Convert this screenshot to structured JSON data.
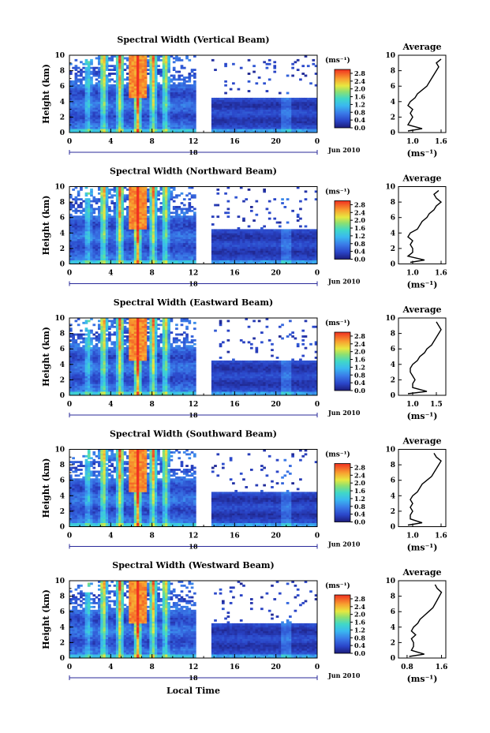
{
  "figure": {
    "xlabel": "Local Time",
    "date_label": "Jun 2010",
    "day_label": "18",
    "panel_ylabel": "Height (km)",
    "unit_label": "(ms⁻¹)",
    "avg_title": "Average",
    "avg_xlabel": "(ms⁻¹)"
  },
  "chart_data": [
    {
      "type": "heatmap",
      "title": "Spectral Width (Vertical Beam)",
      "xlabel": "",
      "ylabel": "Height (km)",
      "x_ticks": [
        "0",
        "4",
        "8",
        "12",
        "16",
        "20",
        "0"
      ],
      "y_ticks": [
        "0",
        "2",
        "4",
        "6",
        "8",
        "10"
      ],
      "xlim": [
        0,
        24
      ],
      "ylim": [
        0,
        10
      ],
      "colorbar": {
        "label": "(ms⁻¹)",
        "ticks": [
          "0.0",
          "0.4",
          "0.8",
          "1.2",
          "1.6",
          "2.0",
          "2.4",
          "2.8"
        ],
        "range": [
          0,
          3.0
        ]
      },
      "data_gap": [
        12.2,
        13.8
      ],
      "convective_cells": [
        [
          1.8,
          0.9
        ],
        [
          3.3,
          1.7
        ],
        [
          4.9,
          1.9
        ],
        [
          6.6,
          3.0
        ],
        [
          8.1,
          1.8
        ],
        [
          9.3,
          1.5
        ]
      ],
      "profile": {
        "title": "Average",
        "xlabel": "(ms⁻¹)",
        "x_ticks": [
          "1.0",
          "1.6"
        ],
        "y_ticks": [
          "0",
          "2",
          "4",
          "6",
          "8",
          "10"
        ],
        "xlim": [
          0.7,
          1.7
        ],
        "ylim": [
          0,
          10
        ],
        "height": [
          0.2,
          0.5,
          1.0,
          1.5,
          2.0,
          2.5,
          3.0,
          3.5,
          4.0,
          4.5,
          5.0,
          5.5,
          6.0,
          6.5,
          7.0,
          7.5,
          8.0,
          8.5,
          9.0,
          9.5
        ],
        "value": [
          0.9,
          1.2,
          0.9,
          0.95,
          1.0,
          0.95,
          1.0,
          0.9,
          0.95,
          1.05,
          1.1,
          1.2,
          1.3,
          1.35,
          1.4,
          1.45,
          1.5,
          1.55,
          1.5,
          1.6
        ]
      }
    },
    {
      "type": "heatmap",
      "title": "Spectral Width (Northward Beam)",
      "xlabel": "",
      "ylabel": "Height (km)",
      "x_ticks": [
        "0",
        "4",
        "8",
        "12",
        "16",
        "20",
        "0"
      ],
      "y_ticks": [
        "0",
        "2",
        "4",
        "6",
        "8",
        "10"
      ],
      "xlim": [
        0,
        24
      ],
      "ylim": [
        0,
        10
      ],
      "colorbar": {
        "label": "(ms⁻¹)",
        "ticks": [
          "0.0",
          "0.4",
          "0.8",
          "1.2",
          "1.6",
          "2.0",
          "2.4",
          "2.8"
        ],
        "range": [
          0,
          3.0
        ]
      },
      "data_gap": [
        12.2,
        13.8
      ],
      "convective_cells": [
        [
          1.8,
          0.9
        ],
        [
          3.3,
          1.7
        ],
        [
          4.9,
          1.9
        ],
        [
          6.6,
          3.0
        ],
        [
          8.1,
          1.8
        ],
        [
          9.3,
          1.5
        ]
      ],
      "profile": {
        "title": "Average",
        "xlabel": "(ms⁻¹)",
        "x_ticks": [
          "1.0",
          "1.6"
        ],
        "y_ticks": [
          "0",
          "2",
          "4",
          "6",
          "8",
          "10"
        ],
        "xlim": [
          0.7,
          1.7
        ],
        "ylim": [
          0,
          10
        ],
        "height": [
          0.2,
          0.5,
          1.0,
          1.5,
          2.0,
          2.5,
          3.0,
          3.5,
          4.0,
          4.5,
          5.0,
          5.5,
          6.0,
          6.5,
          7.0,
          7.5,
          8.0,
          8.5,
          9.0,
          9.5
        ],
        "value": [
          0.95,
          1.25,
          0.9,
          1.0,
          1.0,
          0.95,
          1.0,
          0.9,
          0.95,
          1.1,
          1.15,
          1.2,
          1.3,
          1.35,
          1.45,
          1.5,
          1.6,
          1.5,
          1.45,
          1.55
        ]
      }
    },
    {
      "type": "heatmap",
      "title": "Spectral Width (Eastward Beam)",
      "xlabel": "",
      "ylabel": "Height (km)",
      "x_ticks": [
        "0",
        "4",
        "8",
        "12",
        "16",
        "20",
        "0"
      ],
      "y_ticks": [
        "0",
        "2",
        "4",
        "6",
        "8",
        "10"
      ],
      "xlim": [
        0,
        24
      ],
      "ylim": [
        0,
        10
      ],
      "colorbar": {
        "label": "(ms⁻¹)",
        "ticks": [
          "0.0",
          "0.4",
          "0.8",
          "1.2",
          "1.6",
          "2.0",
          "2.4",
          "2.8"
        ],
        "range": [
          0,
          3.0
        ]
      },
      "data_gap": [
        12.2,
        13.8
      ],
      "convective_cells": [
        [
          1.8,
          0.9
        ],
        [
          3.3,
          1.7
        ],
        [
          4.9,
          1.9
        ],
        [
          6.6,
          3.0
        ],
        [
          8.1,
          1.8
        ],
        [
          9.3,
          1.5
        ]
      ],
      "profile": {
        "title": "Average",
        "xlabel": "(ms⁻¹)",
        "x_ticks": [
          "1.0",
          "1.5"
        ],
        "y_ticks": [
          "0",
          "2",
          "4",
          "6",
          "8",
          "10"
        ],
        "xlim": [
          0.7,
          1.7
        ],
        "ylim": [
          0,
          10
        ],
        "height": [
          0.2,
          0.5,
          1.0,
          1.5,
          2.0,
          2.5,
          3.0,
          3.5,
          4.0,
          4.5,
          5.0,
          5.5,
          6.0,
          6.5,
          7.0,
          7.5,
          8.0,
          8.5,
          9.0,
          9.5
        ],
        "value": [
          0.9,
          1.3,
          1.0,
          1.0,
          1.05,
          1.0,
          0.95,
          0.95,
          1.0,
          1.1,
          1.15,
          1.25,
          1.3,
          1.4,
          1.45,
          1.5,
          1.55,
          1.6,
          1.55,
          1.5
        ]
      }
    },
    {
      "type": "heatmap",
      "title": "Spectral Width (Southward Beam)",
      "xlabel": "",
      "ylabel": "Height (km)",
      "x_ticks": [
        "0",
        "4",
        "8",
        "12",
        "16",
        "20",
        "0"
      ],
      "y_ticks": [
        "0",
        "2",
        "4",
        "6",
        "8",
        "10"
      ],
      "xlim": [
        0,
        24
      ],
      "ylim": [
        0,
        10
      ],
      "colorbar": {
        "label": "(ms⁻¹)",
        "ticks": [
          "0.0",
          "0.4",
          "0.8",
          "1.2",
          "1.6",
          "2.0",
          "2.4",
          "2.8"
        ],
        "range": [
          0,
          3.0
        ]
      },
      "data_gap": [
        12.2,
        13.8
      ],
      "convective_cells": [
        [
          1.8,
          0.9
        ],
        [
          3.3,
          1.7
        ],
        [
          4.9,
          1.9
        ],
        [
          6.6,
          3.0
        ],
        [
          8.1,
          1.8
        ],
        [
          9.3,
          1.5
        ]
      ],
      "profile": {
        "title": "Average",
        "xlabel": "(ms⁻¹)",
        "x_ticks": [
          "1.0",
          "1.6"
        ],
        "y_ticks": [
          "0",
          "2",
          "4",
          "6",
          "8",
          "10"
        ],
        "xlim": [
          0.7,
          1.7
        ],
        "ylim": [
          0,
          10
        ],
        "height": [
          0.2,
          0.5,
          1.0,
          1.5,
          2.0,
          2.5,
          3.0,
          3.5,
          4.0,
          4.5,
          5.0,
          5.5,
          6.0,
          6.5,
          7.0,
          7.5,
          8.0,
          8.5,
          9.0,
          9.5
        ],
        "value": [
          0.9,
          1.2,
          0.95,
          0.95,
          1.0,
          0.95,
          1.0,
          0.95,
          1.0,
          1.1,
          1.15,
          1.2,
          1.3,
          1.4,
          1.45,
          1.5,
          1.55,
          1.6,
          1.5,
          1.45
        ]
      }
    },
    {
      "type": "heatmap",
      "title": "Spectral Width (Westward Beam)",
      "xlabel": "Local Time",
      "ylabel": "Height (km)",
      "x_ticks": [
        "0",
        "4",
        "8",
        "12",
        "16",
        "20",
        "0"
      ],
      "y_ticks": [
        "0",
        "2",
        "4",
        "6",
        "8",
        "10"
      ],
      "xlim": [
        0,
        24
      ],
      "ylim": [
        0,
        10
      ],
      "colorbar": {
        "label": "(ms⁻¹)",
        "ticks": [
          "0.0",
          "0.4",
          "0.8",
          "1.2",
          "1.6",
          "2.0",
          "2.4",
          "2.8"
        ],
        "range": [
          0,
          3.0
        ]
      },
      "data_gap": [
        12.2,
        13.8
      ],
      "convective_cells": [
        [
          1.8,
          0.9
        ],
        [
          3.3,
          1.7
        ],
        [
          4.9,
          1.9
        ],
        [
          6.6,
          3.0
        ],
        [
          8.1,
          1.8
        ],
        [
          9.3,
          1.5
        ]
      ],
      "profile": {
        "title": "Average",
        "xlabel": "(ms⁻¹)",
        "x_ticks": [
          "0.8",
          "1.6"
        ],
        "y_ticks": [
          "0",
          "2",
          "4",
          "6",
          "8",
          "10"
        ],
        "xlim": [
          0.6,
          1.7
        ],
        "ylim": [
          0,
          10
        ],
        "height": [
          0.2,
          0.5,
          1.0,
          1.5,
          2.0,
          2.5,
          3.0,
          3.5,
          4.0,
          4.5,
          5.0,
          5.5,
          6.0,
          6.5,
          7.0,
          7.5,
          8.0,
          8.5,
          9.0,
          9.5
        ],
        "value": [
          0.85,
          1.2,
          0.9,
          0.95,
          0.95,
          0.9,
          1.0,
          0.9,
          0.95,
          1.05,
          1.1,
          1.2,
          1.3,
          1.4,
          1.45,
          1.5,
          1.55,
          1.6,
          1.5,
          1.45
        ]
      }
    }
  ]
}
